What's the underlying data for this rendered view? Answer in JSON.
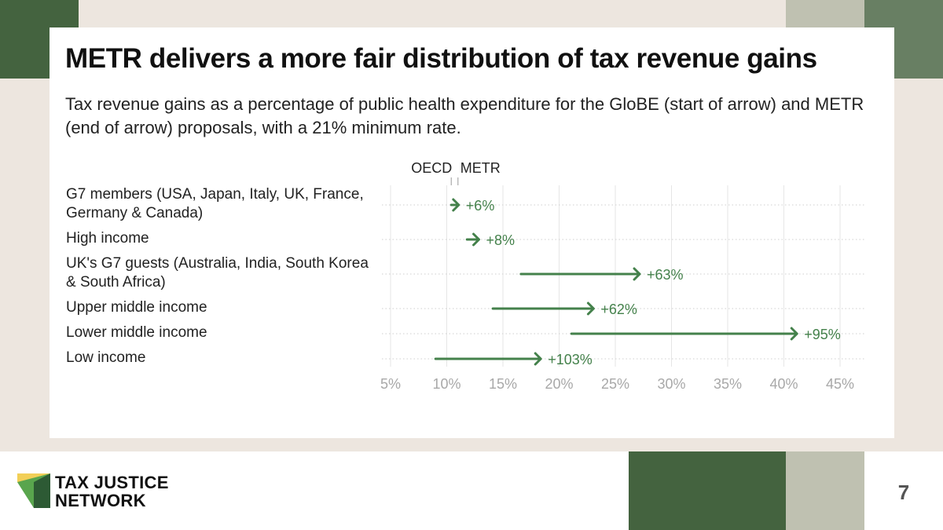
{
  "title": "METR delivers a more fair distribution of tax revenue gains",
  "subtitle": "Tax revenue gains as a percentage of public health expenditure for the GloBE (start of arrow) and METR (end of arrow) proposals, with a 21% minimum rate.",
  "chart_data": {
    "type": "arrow",
    "legend": {
      "start": "OECD",
      "end": "METR"
    },
    "x_ticks": [
      "5%",
      "10%",
      "15%",
      "20%",
      "25%",
      "30%",
      "35%",
      "40%",
      "45%"
    ],
    "xlim": [
      5,
      45
    ],
    "grid": true,
    "color": "#44814b",
    "rows": [
      {
        "label": "G7 members (USA, Japan, Italy, UK, France, Germany & Canada)",
        "start": 10.4,
        "end": 11.0,
        "change": "+6%"
      },
      {
        "label": "High income",
        "start": 11.8,
        "end": 12.8,
        "change": "+8%"
      },
      {
        "label": "UK's G7 guests (Australia, India, South Korea & South Africa)",
        "start": 16.6,
        "end": 27.1,
        "change": "+63%"
      },
      {
        "label": "Upper middle income",
        "start": 14.1,
        "end": 23.0,
        "change": "+62%"
      },
      {
        "label": "Lower middle income",
        "start": 21.1,
        "end": 41.1,
        "change": "+95%"
      },
      {
        "label": "Low income",
        "start": 9.0,
        "end": 18.3,
        "change": "+103%"
      }
    ]
  },
  "footer": {
    "logo_line1": "TAX JUSTICE",
    "logo_line2": "NETWORK",
    "page_number": "7"
  }
}
